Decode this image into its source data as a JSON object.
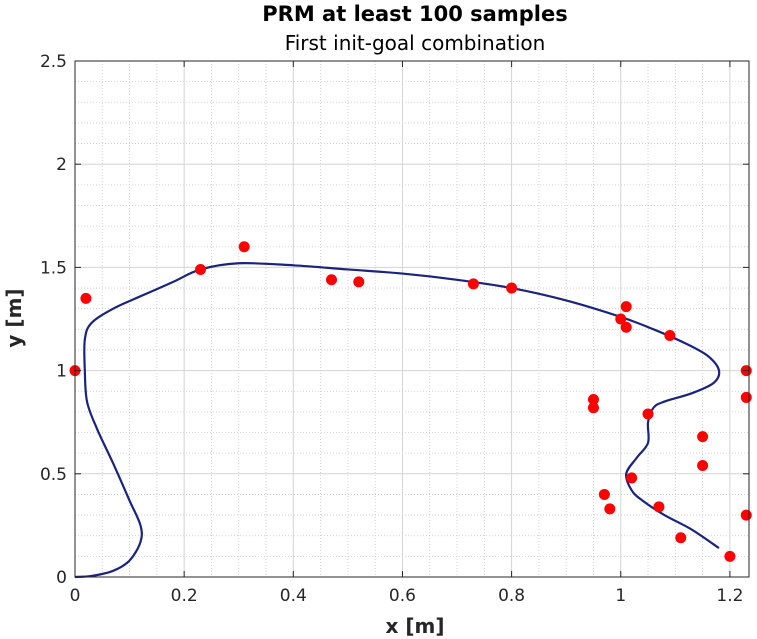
{
  "chart_data": {
    "type": "scatter",
    "title": "PRM at least 100 samples",
    "subtitle": "First init-goal combination",
    "xlabel": "x [m]",
    "ylabel": "y [m]",
    "xlim": [
      0,
      1.235
    ],
    "ylim": [
      0,
      2.5
    ],
    "x_ticks": [
      "0",
      "0.2",
      "0.4",
      "0.6",
      "0.8",
      "1",
      "1.2"
    ],
    "y_ticks": [
      "0",
      "0.5",
      "1",
      "1.5",
      "2",
      "2.5"
    ],
    "grid": true,
    "minor_grid": true,
    "series": [
      {
        "kind": "line",
        "color": "#1a237e",
        "points": [
          [
            0,
            0
          ],
          [
            0.03,
            0.005
          ],
          [
            0.07,
            0.03
          ],
          [
            0.1,
            0.08
          ],
          [
            0.12,
            0.17
          ],
          [
            0.12,
            0.25
          ],
          [
            0.1,
            0.37
          ],
          [
            0.07,
            0.55
          ],
          [
            0.04,
            0.72
          ],
          [
            0.022,
            0.85
          ],
          [
            0.018,
            1.0
          ],
          [
            0.018,
            1.15
          ],
          [
            0.03,
            1.23
          ],
          [
            0.07,
            1.3
          ],
          [
            0.12,
            1.36
          ],
          [
            0.18,
            1.43
          ],
          [
            0.23,
            1.49
          ],
          [
            0.3,
            1.52
          ],
          [
            0.4,
            1.51
          ],
          [
            0.5,
            1.49
          ],
          [
            0.6,
            1.47
          ],
          [
            0.7,
            1.44
          ],
          [
            0.8,
            1.4
          ],
          [
            0.9,
            1.34
          ],
          [
            1.0,
            1.26
          ],
          [
            1.06,
            1.2
          ],
          [
            1.12,
            1.13
          ],
          [
            1.16,
            1.07
          ],
          [
            1.18,
            1.0
          ],
          [
            1.17,
            0.94
          ],
          [
            1.13,
            0.89
          ],
          [
            1.08,
            0.85
          ],
          [
            1.06,
            0.82
          ],
          [
            1.05,
            0.75
          ],
          [
            1.05,
            0.65
          ],
          [
            1.03,
            0.58
          ],
          [
            1.01,
            0.5
          ],
          [
            1.02,
            0.42
          ],
          [
            1.04,
            0.37
          ],
          [
            1.08,
            0.3
          ],
          [
            1.13,
            0.23
          ],
          [
            1.18,
            0.14
          ]
        ]
      },
      {
        "kind": "points",
        "color": "#ff0000",
        "points": [
          [
            0,
            1.0
          ],
          [
            0.02,
            1.35
          ],
          [
            0.23,
            1.49
          ],
          [
            0.31,
            1.6
          ],
          [
            0.47,
            1.44
          ],
          [
            0.52,
            1.43
          ],
          [
            0.73,
            1.42
          ],
          [
            0.8,
            1.4
          ],
          [
            0.95,
            0.86
          ],
          [
            0.95,
            0.82
          ],
          [
            0.97,
            0.4
          ],
          [
            0.98,
            0.33
          ],
          [
            1.0,
            1.25
          ],
          [
            1.01,
            1.31
          ],
          [
            1.01,
            1.21
          ],
          [
            1.02,
            0.48
          ],
          [
            1.05,
            0.79
          ],
          [
            1.07,
            0.34
          ],
          [
            1.09,
            1.17
          ],
          [
            1.11,
            0.19
          ],
          [
            1.15,
            0.68
          ],
          [
            1.15,
            0.54
          ],
          [
            1.2,
            0.1
          ],
          [
            1.23,
            1.0
          ],
          [
            1.23,
            0.87
          ],
          [
            1.23,
            0.3
          ]
        ]
      }
    ]
  }
}
